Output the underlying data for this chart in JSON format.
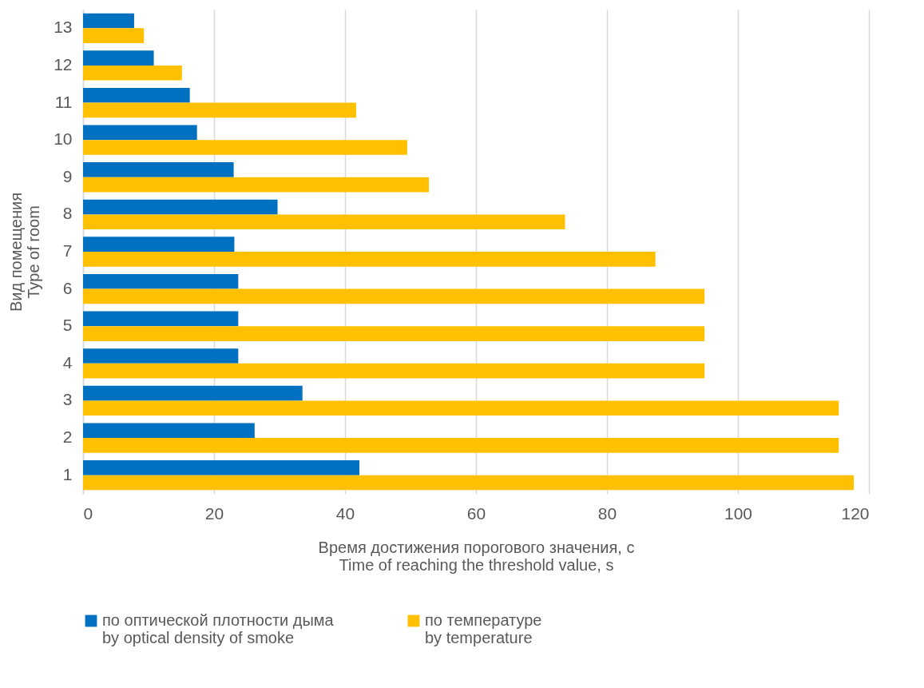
{
  "chart_data": {
    "type": "bar",
    "orientation": "horizontal",
    "xlabel": "Время достижения порогового значения, с\nTime of reaching the threshold value, s",
    "ylabel": "Вид помещения\nType of room",
    "categories": [
      "13",
      "12",
      "11",
      "10",
      "9",
      "8",
      "7",
      "6",
      "5",
      "4",
      "3",
      "2",
      "1"
    ],
    "series": [
      {
        "name": "по оптической плотности дыма\nby optical density of smoke",
        "color": "#0070c0",
        "values": [
          7.8,
          10.8,
          16.3,
          17.4,
          23,
          29.7,
          23.1,
          23.7,
          23.7,
          23.7,
          33.5,
          26.2,
          42.2
        ]
      },
      {
        "name": "по температуре\nby temperature",
        "color": "#ffc000",
        "values": [
          9.3,
          15.1,
          41.7,
          49.5,
          52.8,
          73.6,
          87.4,
          94.9,
          94.9,
          94.9,
          115.4,
          115.4,
          117.7
        ]
      }
    ],
    "xlim": [
      0,
      120
    ],
    "xticks": [
      0,
      20,
      40,
      60,
      80,
      100,
      120
    ],
    "grid": "x",
    "legend": "bottom"
  }
}
